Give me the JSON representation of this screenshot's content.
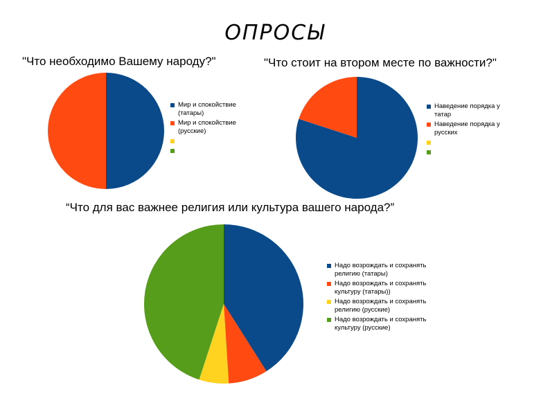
{
  "page": {
    "title": "ОПРОСЫ"
  },
  "chart_data": [
    {
      "type": "pie",
      "title": "\"Что необходимо Вашему народу?\"",
      "series": [
        {
          "name": "Мир и спокойствие (татары)",
          "value": 50,
          "color": "#0b4a8a"
        },
        {
          "name": "Мир и спокойствие (русские)",
          "value": 50,
          "color": "#ff4a12"
        },
        {
          "name": "",
          "value": 0,
          "color": "#ffd320"
        },
        {
          "name": "",
          "value": 0,
          "color": "#579d1c"
        }
      ]
    },
    {
      "type": "pie",
      "title": "\"Что стоит на втором месте по важности?\"",
      "series": [
        {
          "name": "Наведение порядка у татар",
          "value": 80,
          "color": "#0b4a8a"
        },
        {
          "name": "Наведение порядка у русских",
          "value": 20,
          "color": "#ff4a12"
        },
        {
          "name": "",
          "value": 0,
          "color": "#ffd320"
        },
        {
          "name": "",
          "value": 0,
          "color": "#579d1c"
        }
      ]
    },
    {
      "type": "pie",
      "title": "“Что для вас важнее религия или культура вашего народа?”",
      "series": [
        {
          "name": "Надо возрождать и сохранять религию (татары)",
          "value": 41,
          "color": "#0b4a8a"
        },
        {
          "name": "Надо возрождать и сохранять культуру (татары))",
          "value": 8,
          "color": "#ff4a12"
        },
        {
          "name": "Надо возрождать и сохранять религию (русские)",
          "value": 6,
          "color": "#ffd320"
        },
        {
          "name": "Надо возрождать и сохранять культуру (русские)",
          "value": 45,
          "color": "#579d1c"
        }
      ]
    }
  ]
}
